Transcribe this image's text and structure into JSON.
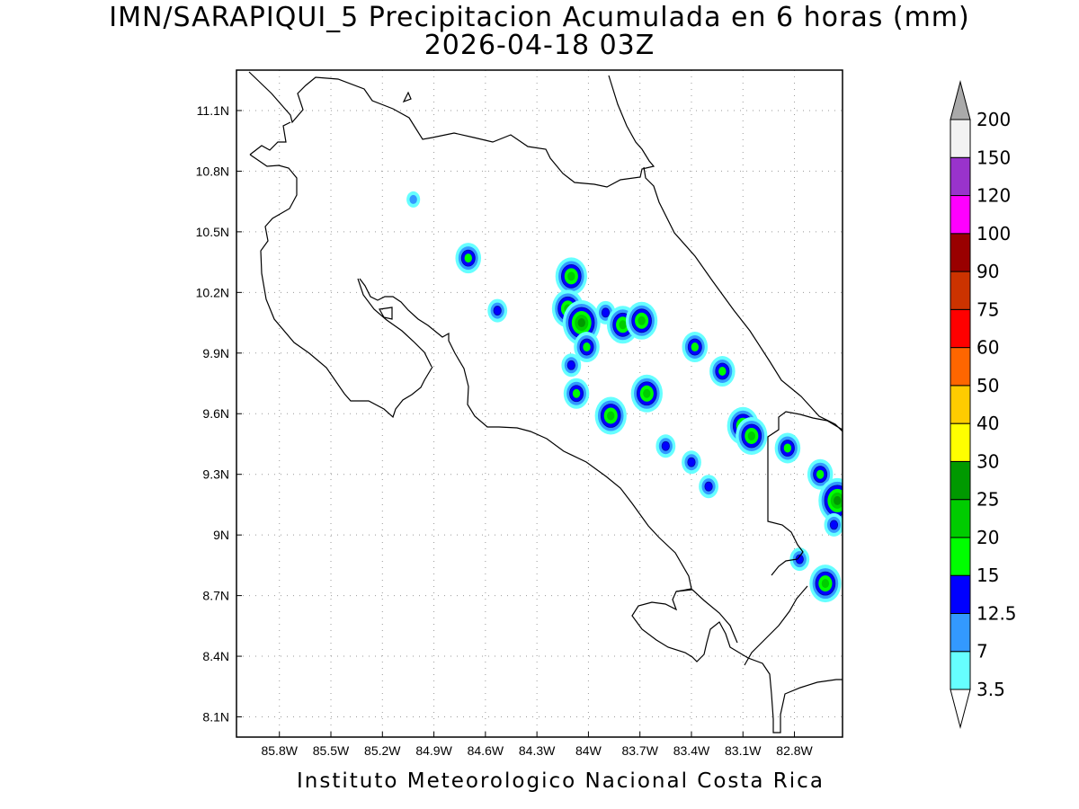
{
  "title": {
    "line1": "IMN/SARAPIQUI_5 Precipitacion Acumulada en 6 horas (mm)",
    "line2": "2026-04-18 03Z"
  },
  "footer": "Instituto Meteorologico Nacional Costa Rica",
  "map": {
    "lon_range": [
      -86.05,
      -82.52
    ],
    "lat_range": [
      8.0,
      11.3
    ],
    "lon_ticks": [
      {
        "v": -85.8,
        "label": "85.8W"
      },
      {
        "v": -85.5,
        "label": "85.5W"
      },
      {
        "v": -85.2,
        "label": "85.2W"
      },
      {
        "v": -84.9,
        "label": "84.9W"
      },
      {
        "v": -84.6,
        "label": "84.6W"
      },
      {
        "v": -84.3,
        "label": "84.3W"
      },
      {
        "v": -84.0,
        "label": "84W"
      },
      {
        "v": -83.7,
        "label": "83.7W"
      },
      {
        "v": -83.4,
        "label": "83.4W"
      },
      {
        "v": -83.1,
        "label": "83.1W"
      },
      {
        "v": -82.8,
        "label": "82.8W"
      }
    ],
    "lat_ticks": [
      {
        "v": 11.1,
        "label": "11.1N"
      },
      {
        "v": 10.8,
        "label": "10.8N"
      },
      {
        "v": 10.5,
        "label": "10.5N"
      },
      {
        "v": 10.2,
        "label": "10.2N"
      },
      {
        "v": 9.9,
        "label": "9.9N"
      },
      {
        "v": 9.6,
        "label": "9.6N"
      },
      {
        "v": 9.3,
        "label": "9.3N"
      },
      {
        "v": 9.0,
        "label": "9N"
      },
      {
        "v": 8.7,
        "label": "8.7N"
      },
      {
        "v": 8.4,
        "label": "8.4N"
      },
      {
        "v": 8.1,
        "label": "8.1N"
      }
    ],
    "grid": true,
    "coast_color": "#000000"
  },
  "colorbar": {
    "levels": [
      "3.5",
      "7",
      "12.5",
      "15",
      "20",
      "25",
      "30",
      "40",
      "50",
      "60",
      "75",
      "90",
      "100",
      "120",
      "150",
      "200"
    ],
    "colors": [
      "#66ffff",
      "#3399ff",
      "#0000ff",
      "#00ff00",
      "#00cc00",
      "#009900",
      "#ffff00",
      "#ffcc00",
      "#ff6600",
      "#ff0000",
      "#cc3300",
      "#990000",
      "#ff00ff",
      "#9933cc",
      "#f2f2f2"
    ],
    "below_color": "#ffffff",
    "above_color": "#aaaaaa"
  },
  "precip_cells": [
    {
      "lon": -84.7,
      "lat": 10.37,
      "level": 3
    },
    {
      "lon": -84.53,
      "lat": 10.11,
      "level": 2
    },
    {
      "lon": -84.1,
      "lat": 10.28,
      "level": 4
    },
    {
      "lon": -84.12,
      "lat": 10.12,
      "level": 4
    },
    {
      "lon": -84.04,
      "lat": 10.05,
      "level": 5
    },
    {
      "lon": -84.01,
      "lat": 9.93,
      "level": 3
    },
    {
      "lon": -83.9,
      "lat": 10.1,
      "level": 2
    },
    {
      "lon": -83.8,
      "lat": 10.04,
      "level": 4
    },
    {
      "lon": -83.69,
      "lat": 10.06,
      "level": 4
    },
    {
      "lon": -84.1,
      "lat": 9.84,
      "level": 2
    },
    {
      "lon": -84.07,
      "lat": 9.7,
      "level": 3
    },
    {
      "lon": -83.87,
      "lat": 9.59,
      "level": 4
    },
    {
      "lon": -83.66,
      "lat": 9.7,
      "level": 4
    },
    {
      "lon": -83.55,
      "lat": 9.44,
      "level": 2
    },
    {
      "lon": -83.4,
      "lat": 9.36,
      "level": 2
    },
    {
      "lon": -83.38,
      "lat": 9.93,
      "level": 3
    },
    {
      "lon": -83.22,
      "lat": 9.81,
      "level": 3
    },
    {
      "lon": -83.1,
      "lat": 9.54,
      "level": 4
    },
    {
      "lon": -83.05,
      "lat": 9.49,
      "level": 4
    },
    {
      "lon": -82.84,
      "lat": 9.43,
      "level": 3
    },
    {
      "lon": -82.65,
      "lat": 9.3,
      "level": 3
    },
    {
      "lon": -82.55,
      "lat": 9.17,
      "level": 5
    },
    {
      "lon": -82.57,
      "lat": 9.05,
      "level": 2
    },
    {
      "lon": -82.77,
      "lat": 8.88,
      "level": 2
    },
    {
      "lon": -82.62,
      "lat": 8.76,
      "level": 4
    },
    {
      "lon": -83.3,
      "lat": 9.24,
      "level": 2
    },
    {
      "lon": -85.02,
      "lat": 10.66,
      "level": 1
    }
  ]
}
